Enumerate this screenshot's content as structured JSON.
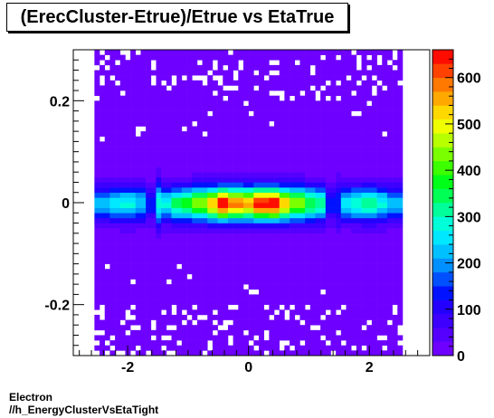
{
  "chart_data": {
    "type": "heatmap",
    "title": "(ErecCluster-Etrue)/Etrue vs EtaTrue",
    "xlabel": "",
    "ylabel": "",
    "xlim": [
      -2.9,
      3.0
    ],
    "ylim": [
      -0.3,
      0.3
    ],
    "x_ticks": [
      {
        "value": -2,
        "label": "-2"
      },
      {
        "value": 0,
        "label": "0"
      },
      {
        "value": 2,
        "label": "2"
      }
    ],
    "y_ticks": [
      {
        "value": 0.2,
        "label": "0.2"
      },
      {
        "value": 0,
        "label": "0"
      },
      {
        "value": -0.2,
        "label": "-0.2"
      }
    ],
    "zlim": [
      0,
      660
    ],
    "z_ticks": [
      {
        "value": 0,
        "label": "0"
      },
      {
        "value": 100,
        "label": "100"
      },
      {
        "value": 200,
        "label": "200"
      },
      {
        "value": 300,
        "label": "300"
      },
      {
        "value": 400,
        "label": "400"
      },
      {
        "value": 500,
        "label": "500"
      },
      {
        "value": 600,
        "label": "600"
      }
    ],
    "colormap": [
      "#6e00ff",
      "#5500ff",
      "#3d00ff",
      "#2400ff",
      "#0012ff",
      "#0050ff",
      "#0090ff",
      "#00c0ff",
      "#00e8ff",
      "#00ffd8",
      "#00ff9a",
      "#00ff55",
      "#00ff18",
      "#3cff00",
      "#7aff00",
      "#b8ff00",
      "#f0ff00",
      "#ffd800",
      "#ffa800",
      "#ff7800",
      "#ff4200",
      "#ff0c00"
    ],
    "x_centers_note": "columns: 60 bins from -2.55 to 2.55",
    "data_columns": [
      {
        "x": -2.4,
        "peak": 210
      },
      {
        "x": -2.2,
        "peak": 240
      },
      {
        "x": -2.0,
        "peak": 260
      },
      {
        "x": -1.8,
        "peak": 220
      },
      {
        "x": -1.6,
        "peak": 120
      },
      {
        "x": -1.4,
        "peak": 260
      },
      {
        "x": -1.2,
        "peak": 330
      },
      {
        "x": -1.0,
        "peak": 360
      },
      {
        "x": -0.8,
        "peak": 430
      },
      {
        "x": -0.6,
        "peak": 520
      },
      {
        "x": -0.4,
        "peak": 640
      },
      {
        "x": -0.2,
        "peak": 560
      },
      {
        "x": 0.0,
        "peak": 530
      },
      {
        "x": 0.2,
        "peak": 620
      },
      {
        "x": 0.4,
        "peak": 640
      },
      {
        "x": 0.6,
        "peak": 520
      },
      {
        "x": 0.8,
        "peak": 420
      },
      {
        "x": 1.0,
        "peak": 340
      },
      {
        "x": 1.2,
        "peak": 300
      },
      {
        "x": 1.4,
        "peak": 120
      },
      {
        "x": 1.6,
        "peak": 250
      },
      {
        "x": 1.8,
        "peak": 280
      },
      {
        "x": 2.0,
        "peak": 300
      },
      {
        "x": 2.2,
        "peak": 260
      },
      {
        "x": 2.4,
        "peak": 200
      }
    ]
  },
  "footer": {
    "line1": "Electron",
    "line2": "//h_EnergyClusterVsEtaTight"
  }
}
